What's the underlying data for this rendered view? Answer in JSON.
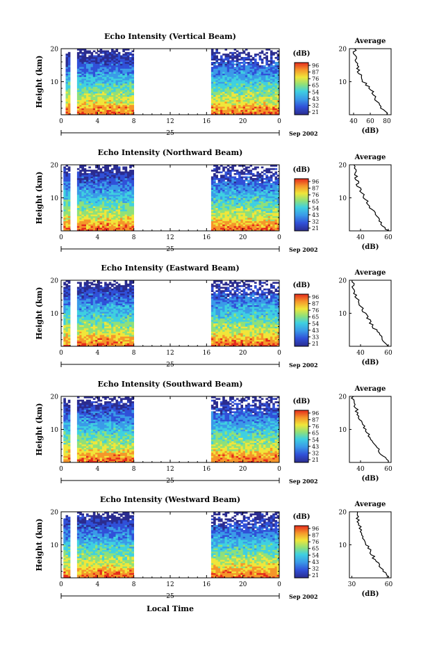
{
  "figure": {
    "date_label": "Sep 2002",
    "day_label": "25",
    "xlabel_bottom": "Local Time",
    "colorbar_unit": "(dB)",
    "average_title": "Average",
    "average_xunit": "(dB)",
    "ylabel": "Height (km)"
  },
  "chart_data": [
    {
      "type": "heatmap",
      "title": "Echo Intensity (Vertical Beam)",
      "ylabel": "Height (km)",
      "x_ticks": [
        "0",
        "4",
        "8",
        "12",
        "16",
        "20",
        "0"
      ],
      "xlim": [
        0,
        24
      ],
      "ylim": [
        0,
        20
      ],
      "y_ticks": [
        "10",
        "20"
      ],
      "data_gaps_hours": [
        [
          0.0,
          0.3
        ],
        [
          1.0,
          1.6
        ],
        [
          7.9,
          16.4
        ]
      ],
      "colorbar": {
        "label": "(dB)",
        "ticks": [
          "96",
          "87",
          "76",
          "65",
          "54",
          "43",
          "32",
          "21"
        ]
      },
      "average_profile": {
        "title": "Average",
        "xlabel": "(dB)",
        "x_ticks": [
          "40",
          "60",
          "80"
        ],
        "xlim": [
          35,
          85
        ],
        "heights_km": [
          0,
          2,
          4,
          6,
          8,
          10,
          12,
          14,
          16,
          18,
          20
        ],
        "values_db": [
          82,
          73,
          68,
          65,
          60,
          52,
          48,
          45,
          43,
          42,
          41
        ]
      }
    },
    {
      "type": "heatmap",
      "title": "Echo Intensity (Northward Beam)",
      "ylabel": "Height (km)",
      "x_ticks": [
        "0",
        "4",
        "8",
        "12",
        "16",
        "20",
        "0"
      ],
      "xlim": [
        0,
        24
      ],
      "ylim": [
        0,
        20
      ],
      "y_ticks": [
        "10",
        "20"
      ],
      "data_gaps_hours": [
        [
          0.0,
          0.2
        ],
        [
          1.0,
          1.6
        ],
        [
          7.9,
          16.4
        ]
      ],
      "colorbar": {
        "label": "(dB)",
        "ticks": [
          "96",
          "87",
          "76",
          "65",
          "54",
          "43",
          "32",
          "21"
        ]
      },
      "average_profile": {
        "title": "Average",
        "xlabel": "(dB)",
        "x_ticks": [
          "40",
          "60"
        ],
        "xlim": [
          32,
          62
        ],
        "heights_km": [
          0,
          2,
          4,
          6,
          8,
          10,
          12,
          14,
          16,
          18,
          20
        ],
        "values_db": [
          60,
          55,
          52,
          49,
          46,
          43,
          40,
          38,
          37,
          36,
          35
        ]
      }
    },
    {
      "type": "heatmap",
      "title": "Echo Intensity (Eastward Beam)",
      "ylabel": "Height (km)",
      "x_ticks": [
        "0",
        "4",
        "8",
        "12",
        "16",
        "20",
        "0"
      ],
      "xlim": [
        0,
        24
      ],
      "ylim": [
        0,
        20
      ],
      "y_ticks": [
        "10",
        "20"
      ],
      "data_gaps_hours": [
        [
          0.0,
          0.2
        ],
        [
          1.0,
          1.6
        ],
        [
          7.9,
          16.4
        ]
      ],
      "colorbar": {
        "label": "(dB)",
        "ticks": [
          "96",
          "87",
          "76",
          "65",
          "54",
          "43",
          "33",
          "21"
        ]
      },
      "average_profile": {
        "title": "Average",
        "xlabel": "(dB)",
        "x_ticks": [
          "40",
          "60"
        ],
        "xlim": [
          32,
          62
        ],
        "heights_km": [
          0,
          2,
          4,
          6,
          8,
          10,
          12,
          14,
          16,
          18,
          20
        ],
        "values_db": [
          61,
          56,
          53,
          49,
          46,
          43,
          40,
          38,
          36,
          35,
          34
        ]
      }
    },
    {
      "type": "heatmap",
      "title": "Echo Intensity (Southward Beam)",
      "ylabel": "Height (km)",
      "x_ticks": [
        "0",
        "4",
        "8",
        "12",
        "16",
        "20",
        "0"
      ],
      "xlim": [
        0,
        24
      ],
      "ylim": [
        0,
        20
      ],
      "y_ticks": [
        "10",
        "20"
      ],
      "data_gaps_hours": [
        [
          0.0,
          0.2
        ],
        [
          1.0,
          1.6
        ],
        [
          7.9,
          16.4
        ]
      ],
      "colorbar": {
        "label": "(dB)",
        "ticks": [
          "96",
          "87",
          "76",
          "65",
          "54",
          "43",
          "32",
          "21"
        ]
      },
      "average_profile": {
        "title": "Average",
        "xlabel": "(dB)",
        "x_ticks": [
          "40",
          "60"
        ],
        "xlim": [
          32,
          62
        ],
        "heights_km": [
          0,
          2,
          4,
          6,
          8,
          10,
          12,
          14,
          16,
          18,
          20
        ],
        "values_db": [
          60,
          56,
          53,
          50,
          46,
          43,
          41,
          39,
          37,
          35,
          34
        ]
      }
    },
    {
      "type": "heatmap",
      "title": "Echo Intensity (Westward Beam)",
      "ylabel": "Height (km)",
      "x_ticks": [
        "0",
        "4",
        "8",
        "12",
        "16",
        "20",
        "0"
      ],
      "xlim": [
        0,
        24
      ],
      "ylim": [
        0,
        20
      ],
      "y_ticks": [
        "10",
        "20"
      ],
      "data_gaps_hours": [
        [
          0.0,
          0.2
        ],
        [
          1.0,
          1.6
        ],
        [
          7.9,
          16.4
        ]
      ],
      "colorbar": {
        "label": "(dB)",
        "ticks": [
          "96",
          "87",
          "76",
          "65",
          "54",
          "43",
          "32",
          "21"
        ]
      },
      "average_profile": {
        "title": "Average",
        "xlabel": "(dB)",
        "x_ticks": [
          "30",
          "60"
        ],
        "xlim": [
          28,
          62
        ],
        "heights_km": [
          0,
          2,
          4,
          6,
          8,
          10,
          12,
          14,
          16,
          18,
          20
        ],
        "values_db": [
          60,
          56,
          52,
          48,
          45,
          42,
          39,
          37,
          36,
          35,
          34
        ]
      }
    }
  ]
}
